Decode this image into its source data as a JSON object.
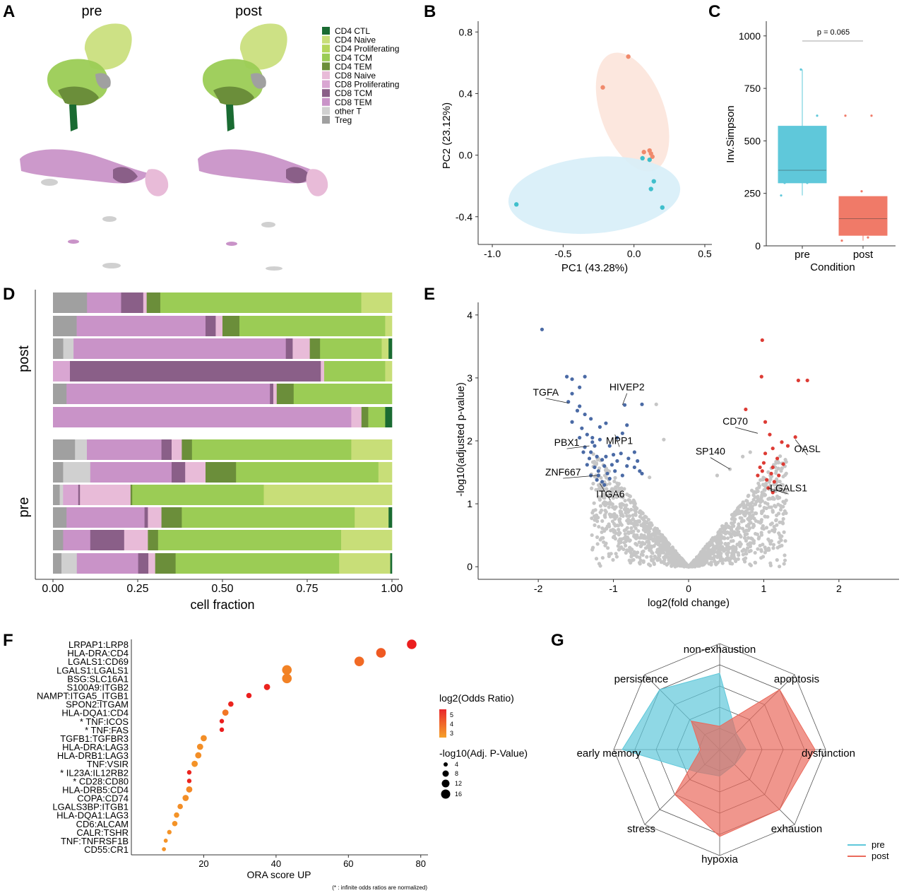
{
  "panels": [
    "A",
    "B",
    "C",
    "D",
    "E",
    "F",
    "G"
  ],
  "chart_data": [
    {
      "panel": "A",
      "type": "scatter",
      "subtitles": [
        "pre",
        "post"
      ],
      "legend": [
        {
          "label": "CD4 CTL",
          "color": "#1a6b32"
        },
        {
          "label": "CD4 Naive",
          "color": "#c8de78"
        },
        {
          "label": "CD4 Proliferating",
          "color": "#b5d65c"
        },
        {
          "label": "CD4 TCM",
          "color": "#9bcc55"
        },
        {
          "label": "CD4 TEM",
          "color": "#6b8e3a"
        },
        {
          "label": "CD8 Naive",
          "color": "#e8bbd8"
        },
        {
          "label": "CD8 Proliferating",
          "color": "#d9a6d2"
        },
        {
          "label": "CD8 TCM",
          "color": "#8a5f88"
        },
        {
          "label": "CD8 TEM",
          "color": "#c993c8"
        },
        {
          "label": "other T",
          "color": "#d0d0d0"
        },
        {
          "label": "Treg",
          "color": "#a0a0a0"
        }
      ]
    },
    {
      "panel": "B",
      "type": "scatter",
      "xlabel": "PC1 (43.28%)",
      "ylabel": "PC2 (23.12%)",
      "xlim": [
        -1.1,
        0.55
      ],
      "ylim": [
        -0.58,
        0.87
      ],
      "xticks": [
        "-1.0",
        "-0.5",
        "0.0",
        "0.5"
      ],
      "yticks": [
        "-0.4",
        "0.0",
        "0.4",
        "0.8"
      ],
      "series": [
        {
          "color": "#f08a6c",
          "points": [
            [
              -0.04,
              0.64
            ],
            [
              -0.22,
              0.44
            ],
            [
              0.07,
              0.02
            ],
            [
              0.11,
              0.03
            ],
            [
              0.12,
              0.01
            ],
            [
              0.13,
              -0.01
            ]
          ]
        },
        {
          "color": "#3fbfcc",
          "points": [
            [
              -0.83,
              -0.32
            ],
            [
              0.06,
              -0.02
            ],
            [
              0.11,
              -0.03
            ],
            [
              0.14,
              -0.17
            ],
            [
              0.12,
              -0.22
            ],
            [
              0.2,
              -0.34
            ]
          ]
        }
      ]
    },
    {
      "panel": "C",
      "type": "box",
      "title": "p = 0.065",
      "xlabel": "Condition",
      "ylabel": "Inv.Simpson",
      "categories": [
        "pre",
        "post"
      ],
      "ylim": [
        0,
        1070
      ],
      "yticks": [
        "0",
        "250",
        "500",
        "750",
        "1000"
      ],
      "boxes": [
        {
          "color": "#5fc8da",
          "q1": 300,
          "median": 360,
          "q3": 570,
          "min": 240,
          "max": 840,
          "points": [
            240,
            300,
            410,
            620,
            840,
            300
          ]
        },
        {
          "color": "#f07a68",
          "q1": 50,
          "median": 130,
          "q3": 235,
          "min": 25,
          "max": 235,
          "points": [
            25,
            40,
            55,
            90,
            260,
            620,
            620
          ]
        }
      ]
    },
    {
      "panel": "D",
      "type": "bar",
      "xlabel": "cell fraction",
      "xlim": [
        0,
        1
      ],
      "xticks": [
        "0.00",
        "0.25",
        "0.50",
        "0.75",
        "1.00"
      ],
      "groups": [
        "post",
        "pre"
      ],
      "rows": [
        [
          [
            "#a0a0a0",
            0.1
          ],
          [
            "#c993c8",
            0.1
          ],
          [
            "#8a5f88",
            0.065
          ],
          [
            "#e8bbd8",
            0.01
          ],
          [
            "#6b8e3a",
            0.04
          ],
          [
            "#9bcc55",
            0.59
          ],
          [
            "#c8de78",
            0.09
          ]
        ],
        [
          [
            "#a0a0a0",
            0.07
          ],
          [
            "#c993c8",
            0.38
          ],
          [
            "#8a5f88",
            0.03
          ],
          [
            "#e8bbd8",
            0.02
          ],
          [
            "#6b8e3a",
            0.05
          ],
          [
            "#9bcc55",
            0.43
          ],
          [
            "#c8de78",
            0.02
          ]
        ],
        [
          [
            "#a0a0a0",
            0.03
          ],
          [
            "#d0d0d0",
            0.03
          ],
          [
            "#c993c8",
            0.62
          ],
          [
            "#8a5f88",
            0.02
          ],
          [
            "#e8bbd8",
            0.05
          ],
          [
            "#6b8e3a",
            0.03
          ],
          [
            "#9bcc55",
            0.18
          ],
          [
            "#c8de78",
            0.02
          ],
          [
            "#1a6b32",
            0.01
          ]
        ],
        [
          [
            "#d9a6d2",
            0.05
          ],
          [
            "#8a5f88",
            0.74
          ],
          [
            "#e8bbd8",
            0.01
          ],
          [
            "#9bcc55",
            0.18
          ],
          [
            "#c8de78",
            0.02
          ]
        ],
        [
          [
            "#a0a0a0",
            0.04
          ],
          [
            "#c993c8",
            0.6
          ],
          [
            "#8a5f88",
            0.01
          ],
          [
            "#e8bbd8",
            0.01
          ],
          [
            "#6b8e3a",
            0.05
          ],
          [
            "#9bcc55",
            0.29
          ]
        ],
        [
          [
            "#c993c8",
            0.88
          ],
          [
            "#e8bbd8",
            0.03
          ],
          [
            "#6b8e3a",
            0.02
          ],
          [
            "#9bcc55",
            0.05
          ],
          [
            "#1a6b32",
            0.02
          ]
        ],
        [
          [
            "#a0a0a0",
            0.065
          ],
          [
            "#d0d0d0",
            0.035
          ],
          [
            "#c993c8",
            0.22
          ],
          [
            "#8a5f88",
            0.03
          ],
          [
            "#e8bbd8",
            0.03
          ],
          [
            "#6b8e3a",
            0.03
          ],
          [
            "#9bcc55",
            0.47
          ],
          [
            "#c8de78",
            0.12
          ]
        ],
        [
          [
            "#a0a0a0",
            0.03
          ],
          [
            "#d0d0d0",
            0.08
          ],
          [
            "#c993c8",
            0.24
          ],
          [
            "#8a5f88",
            0.04
          ],
          [
            "#e8bbd8",
            0.06
          ],
          [
            "#6b8e3a",
            0.09
          ],
          [
            "#9bcc55",
            0.42
          ],
          [
            "#c8de78",
            0.04
          ]
        ],
        [
          [
            "#a0a0a0",
            0.02
          ],
          [
            "#d0d0d0",
            0.01
          ],
          [
            "#d9a6d2",
            0.045
          ],
          [
            "#8a5f88",
            0.005
          ],
          [
            "#e8bbd8",
            0.15
          ],
          [
            "#6b8e3a",
            0.005
          ],
          [
            "#9bcc55",
            0.39
          ],
          [
            "#c8de78",
            0.38
          ]
        ],
        [
          [
            "#a0a0a0",
            0.04
          ],
          [
            "#c993c8",
            0.23
          ],
          [
            "#8a5f88",
            0.01
          ],
          [
            "#e8bbd8",
            0.04
          ],
          [
            "#6b8e3a",
            0.06
          ],
          [
            "#9bcc55",
            0.51
          ],
          [
            "#c8de78",
            0.1
          ],
          [
            "#1a6b32",
            0.01
          ]
        ],
        [
          [
            "#a0a0a0",
            0.03
          ],
          [
            "#c993c8",
            0.08
          ],
          [
            "#8a5f88",
            0.1
          ],
          [
            "#e8bbd8",
            0.07
          ],
          [
            "#6b8e3a",
            0.03
          ],
          [
            "#9bcc55",
            0.54
          ],
          [
            "#c8de78",
            0.15
          ]
        ],
        [
          [
            "#a0a0a0",
            0.025
          ],
          [
            "#d0d0d0",
            0.045
          ],
          [
            "#c993c8",
            0.18
          ],
          [
            "#8a5f88",
            0.03
          ],
          [
            "#e8bbd8",
            0.02
          ],
          [
            "#6b8e3a",
            0.06
          ],
          [
            "#9bcc55",
            0.48
          ],
          [
            "#c8de78",
            0.15
          ],
          [
            "#1a6b32",
            0.005
          ]
        ]
      ]
    },
    {
      "panel": "E",
      "type": "scatter",
      "xlabel": "log2(fold change)",
      "ylabel": "-log10(adjusted p-value)",
      "xlim": [
        -2.8,
        2.8
      ],
      "ylim": [
        -0.2,
        4.2
      ],
      "xticks": [
        "-2",
        "-1",
        "0",
        "1",
        "2"
      ],
      "yticks": [
        "0",
        "1",
        "2",
        "3",
        "4"
      ],
      "down_color": "#4a6aa5",
      "up_color": "#dd3b34",
      "ns_color": "#c6c6c6",
      "down": [
        [
          -1.95,
          3.77
        ],
        [
          -1.62,
          3.02
        ],
        [
          -1.55,
          2.98
        ],
        [
          -1.38,
          3.02
        ],
        [
          -1.45,
          2.85
        ],
        [
          -1.55,
          2.75
        ],
        [
          -1.6,
          2.62
        ],
        [
          -1.45,
          2.55
        ],
        [
          -1.48,
          2.48
        ],
        [
          -1.38,
          2.42
        ],
        [
          -1.3,
          2.35
        ],
        [
          -1.55,
          2.3
        ],
        [
          -1.42,
          2.2
        ],
        [
          -1.35,
          2.1
        ],
        [
          -1.28,
          2.05
        ],
        [
          -1.38,
          1.9
        ],
        [
          -1.3,
          1.82
        ],
        [
          -1.22,
          1.75
        ],
        [
          -1.15,
          1.7
        ],
        [
          -1.12,
          1.6
        ],
        [
          -1.2,
          1.52
        ],
        [
          -1.08,
          1.48
        ],
        [
          -1.02,
          1.62
        ],
        [
          -0.98,
          1.52
        ],
        [
          -1.05,
          1.4
        ],
        [
          -1.15,
          1.35
        ],
        [
          -1.12,
          1.3
        ],
        [
          -1.35,
          1.62
        ],
        [
          -1.25,
          1.58
        ],
        [
          -1.3,
          1.45
        ],
        [
          -1.22,
          1.38
        ],
        [
          -0.88,
          1.45
        ],
        [
          -0.82,
          1.6
        ],
        [
          -0.72,
          1.58
        ],
        [
          -0.65,
          1.52
        ],
        [
          -0.8,
          1.72
        ],
        [
          -0.9,
          1.8
        ],
        [
          -1.05,
          1.92
        ],
        [
          -0.95,
          2.05
        ],
        [
          -1.18,
          2.22
        ],
        [
          -1.1,
          2.28
        ],
        [
          -0.82,
          2.25
        ],
        [
          -0.88,
          2.12
        ],
        [
          -0.72,
          1.82
        ],
        [
          -0.68,
          1.68
        ],
        [
          -0.62,
          1.48
        ],
        [
          -1.18,
          2.02
        ],
        [
          -1.28,
          1.98
        ],
        [
          -0.85,
          2.57
        ],
        [
          -0.62,
          2.58
        ],
        [
          -1.45,
          2.05
        ],
        [
          -1.32,
          1.72
        ],
        [
          -1.25,
          1.92
        ],
        [
          -1.0,
          1.78
        ],
        [
          -0.95,
          1.68
        ],
        [
          -1.1,
          1.75
        ],
        [
          -1.2,
          1.45
        ],
        [
          -1.4,
          1.82
        ]
      ],
      "up": [
        [
          0.98,
          3.6
        ],
        [
          0.97,
          3.02
        ],
        [
          1.46,
          2.96
        ],
        [
          1.58,
          2.96
        ],
        [
          0.76,
          2.5
        ],
        [
          1.02,
          2.3
        ],
        [
          1.08,
          2.1
        ],
        [
          1.24,
          1.98
        ],
        [
          1.32,
          1.92
        ],
        [
          1.42,
          2.06
        ],
        [
          1.12,
          1.88
        ],
        [
          1.02,
          1.8
        ],
        [
          1.18,
          1.72
        ],
        [
          1.26,
          1.63
        ],
        [
          1.12,
          1.58
        ],
        [
          0.98,
          1.52
        ],
        [
          1.1,
          1.48
        ],
        [
          1.2,
          1.45
        ],
        [
          1.04,
          1.38
        ],
        [
          1.14,
          1.35
        ],
        [
          0.92,
          1.45
        ],
        [
          1.06,
          1.25
        ],
        [
          1.12,
          1.18
        ],
        [
          1.0,
          1.65
        ],
        [
          0.95,
          1.58
        ]
      ],
      "ns_top": [
        [
          -0.43,
          2.58
        ],
        [
          -0.33,
          2.02
        ],
        [
          0.55,
          1.55
        ],
        [
          0.72,
          1.75
        ],
        [
          0.82,
          1.82
        ],
        [
          0.38,
          1.45
        ],
        [
          -0.52,
          1.42
        ]
      ],
      "labels": [
        {
          "text": "TGFA",
          "anchor": [
            -1.6,
            2.6
          ],
          "label": [
            -1.9,
            2.72
          ]
        },
        {
          "text": "HIVEP2",
          "anchor": [
            -0.88,
            2.57
          ],
          "label": [
            -0.82,
            2.8
          ]
        },
        {
          "text": "MPP1",
          "anchor": [
            -0.98,
            2.1
          ],
          "label": [
            -0.92,
            1.95
          ]
        },
        {
          "text": "PBX1",
          "anchor": [
            -1.32,
            1.92
          ],
          "label": [
            -1.62,
            1.92
          ]
        },
        {
          "text": "ZNF667",
          "anchor": [
            -1.22,
            1.45
          ],
          "label": [
            -1.67,
            1.45
          ]
        },
        {
          "text": "ITGA6",
          "anchor": [
            -1.18,
            1.32
          ],
          "label": [
            -1.04,
            1.1
          ]
        },
        {
          "text": "SP140",
          "anchor": [
            0.55,
            1.55
          ],
          "label": [
            0.29,
            1.78
          ]
        },
        {
          "text": "CD70",
          "anchor": [
            0.92,
            2.12
          ],
          "label": [
            0.62,
            2.26
          ]
        },
        {
          "text": "OASL",
          "anchor": [
            1.42,
            2.02
          ],
          "label": [
            1.58,
            1.82
          ]
        },
        {
          "text": "LGALS1",
          "anchor": [
            1.06,
            1.25
          ],
          "label": [
            1.33,
            1.2
          ]
        }
      ]
    },
    {
      "panel": "F",
      "type": "scatter",
      "xlabel": "ORA score UP",
      "note": "(* : infinite odds ratios are normalized)",
      "xlim": [
        0,
        82
      ],
      "xticks": [
        "20",
        "40",
        "60",
        "80"
      ],
      "categories": [
        "LRPAP1:LRP8",
        "HLA-DRA:CD4",
        "LGALS1:CD69",
        "LGALS1:LGALS1",
        "BSG:SLC16A1",
        "S100A9:ITGB2",
        "NAMPT:ITGA5_ITGB1",
        "SPON2:ITGAM",
        "HLA-DQA1:CD4",
        "* TNF:ICOS",
        "* TNF:FAS",
        "TGFB1:TGFBR3",
        "HLA-DRA:LAG3",
        "HLA-DRB1:LAG3",
        "TNF:VSIR",
        "* IL23A:IL12RB2",
        "* CD28:CD80",
        "HLA-DRB5:CD4",
        "COPA:CD74",
        "LGALS3BP:ITGB1",
        "HLA-DQA1:LAG3",
        "CD6:ALCAM",
        "CALR:TSHR",
        "TNF:TNFRSF1B",
        "CD55:CR1"
      ],
      "values": [
        77.5,
        69,
        63,
        43,
        43,
        37.5,
        32.5,
        27.5,
        26,
        25,
        25,
        20,
        19,
        18.5,
        17.5,
        16,
        16,
        16,
        15,
        13.5,
        12.5,
        12,
        10.5,
        9.5,
        9
      ],
      "log2_odds": [
        5.3,
        4.3,
        4.0,
        3.6,
        3.6,
        5.2,
        5.3,
        5.2,
        3.8,
        5.3,
        5.3,
        3.4,
        3.4,
        3.4,
        3.3,
        5.2,
        5.2,
        3.5,
        3.4,
        3.4,
        3.3,
        3.3,
        3.3,
        3.3,
        3.3
      ],
      "neglog10_p": [
        16,
        16,
        16,
        16,
        16,
        8,
        6,
        6,
        8,
        4,
        4,
        8,
        8,
        8,
        8,
        4,
        4,
        8,
        8,
        6,
        6,
        6,
        4,
        3,
        3
      ],
      "legend_color_title": "log2(Odds Ratio)",
      "legend_color_ticks": [
        "5",
        "4",
        "3"
      ],
      "legend_size_title": "-log10(Adj. P-Value)",
      "legend_size_ticks": [
        "4",
        "8",
        "12",
        "16"
      ]
    },
    {
      "panel": "G",
      "type": "radar",
      "axes": [
        "non-exhaustion",
        "apoptosis",
        "dysfunction",
        "exhaustion",
        "hypoxia",
        "stress",
        "early memory",
        "persistence"
      ],
      "series": [
        {
          "name": "pre",
          "color": "#5fc8da",
          "values": [
            0.72,
            0.22,
            0.25,
            0.2,
            0.25,
            0.3,
            0.92,
            0.8
          ]
        },
        {
          "name": "post",
          "color": "#ea6a5c",
          "values": [
            0.22,
            0.8,
            0.9,
            0.8,
            0.82,
            0.6,
            0.18,
            0.38
          ]
        }
      ]
    }
  ]
}
